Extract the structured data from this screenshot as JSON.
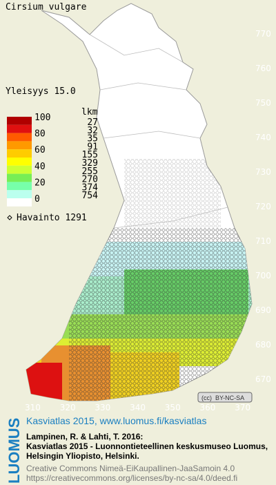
{
  "header": {
    "title": "Cirsium vulgare",
    "frequency": "Yleisyys  15.0"
  },
  "legend": {
    "scale_labels": [
      "100",
      "80",
      "60",
      "40",
      "20",
      "0"
    ],
    "count_heading": "lkm",
    "counts": [
      "27",
      "32",
      "35",
      "91",
      "155",
      "329",
      "255",
      "270",
      "374",
      "754"
    ],
    "observation": "Havainto 1291"
  },
  "grid": {
    "northing_labels": [
      "770",
      "760",
      "750",
      "740",
      "730",
      "720",
      "710",
      "700",
      "690",
      "680",
      "670"
    ],
    "easting_labels": [
      "310",
      "320",
      "330",
      "340",
      "350",
      "360",
      "370"
    ]
  },
  "license_badge": "BY-NC-SA",
  "footer": {
    "logo": "LUOMUS",
    "headline": "Kasviatlas 2015, www.luomus.fi/kasviatlas",
    "citation": [
      "Lampinen, R. & Lahti, T. 2016:",
      "Kasviatlas 2015 - Luonnontieteellinen keskusmuseo Luomus,",
      "Helsingin Yliopisto, Helsinki."
    ],
    "license": [
      "Creative Commons Nimeä-EiKaupallinen-JaaSamoin 4.0",
      "https://creativecommons.org/licenses/by-nc-sa/4.0/deed.fi"
    ]
  }
}
